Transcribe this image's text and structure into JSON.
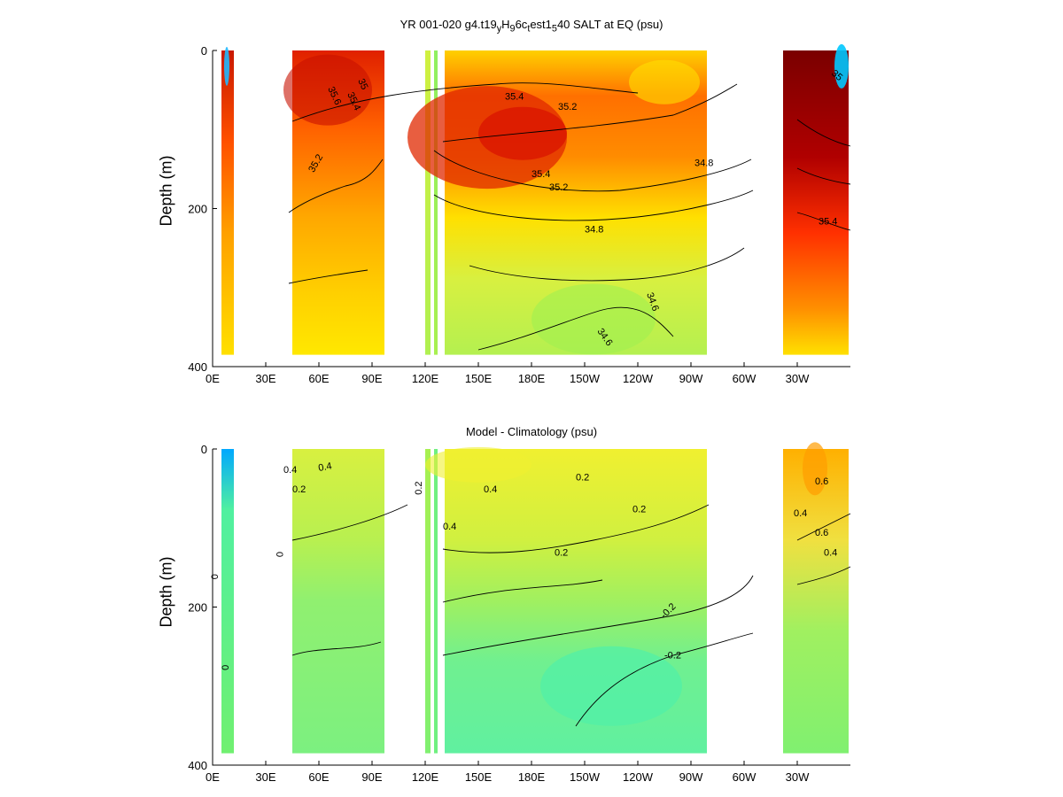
{
  "chart_data": [
    {
      "type": "heatmap",
      "title": "YR 001-020 g4.t19",
      "title_sub1": "y",
      "title_mid1": "H",
      "title_sub2": "9",
      "title_mid2": "6c",
      "title_sub3": "t",
      "title_mid3": "est1",
      "title_sub4": "5",
      "title_end": "40 SALT at EQ (psu)",
      "xlabel": "",
      "ylabel": "Depth (m)",
      "x_ticks": [
        "0E",
        "30E",
        "60E",
        "90E",
        "120E",
        "150E",
        "180E",
        "150W",
        "120W",
        "90W",
        "60W",
        "30W"
      ],
      "y_ticks": [
        "0",
        "200",
        "400"
      ],
      "ylim": [
        0,
        400
      ],
      "xlim_deg_east": [
        0,
        360
      ],
      "ocean_segments_deg_east": [
        [
          5,
          12
        ],
        [
          45,
          97
        ],
        [
          120,
          123
        ],
        [
          125,
          127
        ],
        [
          131,
          279
        ],
        [
          322,
          359
        ]
      ],
      "contour_labels": [
        "35.6",
        "35.4",
        "35.2",
        "35",
        "34.8",
        "34.6",
        "35.8"
      ],
      "colormap": [
        "#0050ff",
        "#00c8ff",
        "#50ff90",
        "#a8f050",
        "#e8f030",
        "#ffe000",
        "#ffb000",
        "#ff7a00",
        "#ff3c00",
        "#d81000",
        "#7a0000"
      ]
    },
    {
      "type": "heatmap",
      "title": "Model - Climatology (psu)",
      "xlabel": "",
      "ylabel": "Depth (m)",
      "x_ticks": [
        "0E",
        "30E",
        "60E",
        "90E",
        "120E",
        "150E",
        "180E",
        "150W",
        "120W",
        "90W",
        "60W",
        "30W"
      ],
      "y_ticks": [
        "0",
        "200",
        "400"
      ],
      "ylim": [
        0,
        400
      ],
      "contour_labels": [
        "0.6",
        "0.4",
        "0.2",
        "0",
        "-0.2"
      ],
      "colormap": [
        "#0050ff",
        "#00c8ff",
        "#50ff90",
        "#a8f050",
        "#e8f030",
        "#ffe000",
        "#ffb000",
        "#ff7a00",
        "#ff3c00"
      ]
    }
  ]
}
